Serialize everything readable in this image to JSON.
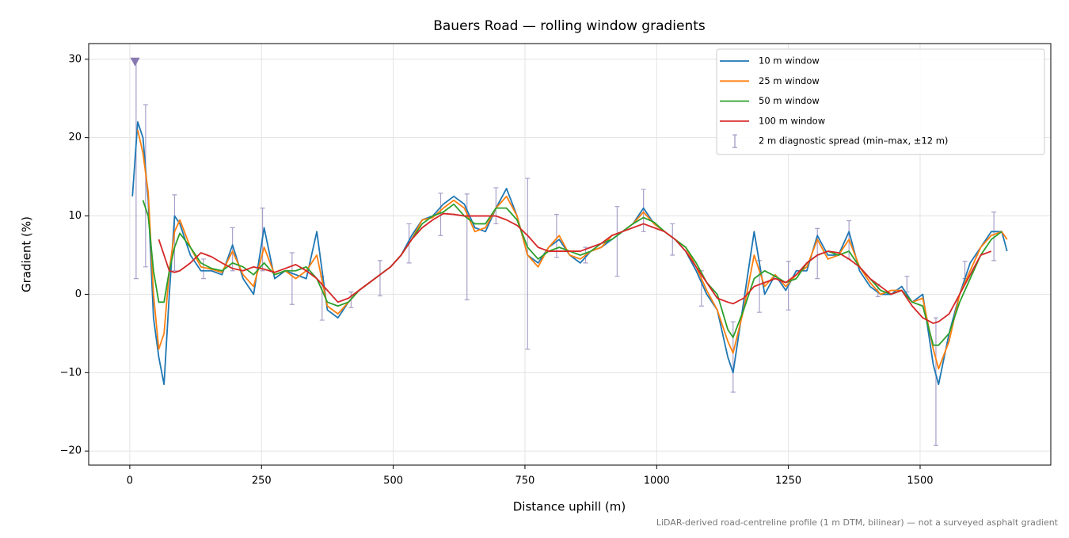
{
  "chart_data": {
    "type": "line",
    "title": "Bauers Road — rolling window gradients",
    "x_label": "Distance uphill (m)",
    "y_label": "Gradient (%)",
    "footnote": "LiDAR-derived road-centreline profile (1 m DTM, bilinear) — not a surveyed asphalt gradient",
    "xlim": [
      -78,
      1748
    ],
    "ylim": [
      -21.8,
      32
    ],
    "xticks": [
      0,
      250,
      500,
      750,
      1000,
      1250,
      1500
    ],
    "yticks": [
      {
        "value": -20,
        "label": "−20"
      },
      {
        "value": -10,
        "label": "−10"
      },
      0,
      10,
      20,
      30
    ],
    "grid": true,
    "legend": "upper right",
    "x": [
      5,
      15,
      25,
      35,
      45,
      55,
      65,
      75,
      85,
      95,
      115,
      135,
      155,
      175,
      195,
      215,
      235,
      255,
      275,
      295,
      315,
      335,
      355,
      375,
      395,
      415,
      435,
      455,
      475,
      495,
      515,
      535,
      555,
      575,
      595,
      615,
      635,
      655,
      675,
      695,
      715,
      735,
      755,
      775,
      795,
      815,
      835,
      855,
      875,
      895,
      915,
      935,
      955,
      975,
      995,
      1015,
      1035,
      1055,
      1075,
      1095,
      1115,
      1135,
      1145,
      1165,
      1185,
      1205,
      1225,
      1245,
      1265,
      1285,
      1305,
      1325,
      1345,
      1365,
      1385,
      1405,
      1425,
      1445,
      1465,
      1485,
      1505,
      1525,
      1535,
      1555,
      1575,
      1595,
      1615,
      1635,
      1655,
      1665
    ],
    "series": [
      {
        "name": "10 m window",
        "color": "#1f77b4",
        "values": [
          12.5,
          22,
          20,
          12,
          -3,
          -8,
          -11.5,
          0,
          10,
          9,
          5,
          3,
          3,
          2.5,
          6.3,
          2,
          0,
          8.5,
          2,
          3,
          2.5,
          2,
          8,
          -2,
          -3,
          -1,
          0.5,
          1.5,
          2.5,
          3.5,
          5,
          7.5,
          9.5,
          10,
          11.5,
          12.5,
          11.5,
          8.5,
          8,
          11,
          13.5,
          10,
          5,
          4,
          6,
          7,
          5,
          4,
          5.5,
          6,
          7,
          8,
          9,
          11,
          9,
          8,
          7,
          5.5,
          3,
          0,
          -2,
          -8,
          -10,
          -1,
          8,
          0,
          2.5,
          0.5,
          3,
          3,
          7.5,
          5,
          5,
          8,
          3,
          1,
          0,
          0,
          1,
          -1,
          0,
          -9,
          -11.5,
          -5,
          0,
          4,
          6,
          8,
          8,
          5.5
        ]
      },
      {
        "name": "25 m window",
        "color": "#ff7f0e",
        "values": [
          null,
          21,
          18,
          13,
          0,
          -7,
          -5,
          3,
          8,
          9.5,
          6,
          3.5,
          3.2,
          2.8,
          5.5,
          2.5,
          1,
          6,
          2.5,
          3,
          2,
          3,
          5,
          -1.5,
          -2.5,
          -1,
          0.5,
          1.5,
          2.5,
          3.5,
          5,
          7,
          9.5,
          9.8,
          11,
          12,
          11,
          8,
          8.5,
          11,
          12.5,
          10,
          5,
          3.5,
          6,
          7.5,
          5,
          4.5,
          5.5,
          6,
          7.5,
          8,
          9,
          10.5,
          9,
          8,
          7,
          6,
          3.5,
          0.5,
          -2,
          -6,
          -7.5,
          -2,
          5,
          1,
          2.5,
          1,
          2.5,
          3.5,
          7,
          4.5,
          5,
          7,
          3.5,
          1.5,
          0,
          0.5,
          0.5,
          -1,
          -0.5,
          -7,
          -9.5,
          -6,
          0,
          3,
          6,
          7.5,
          8,
          7
        ]
      },
      {
        "name": "50 m window",
        "color": "#2ca02c",
        "values": [
          null,
          null,
          12,
          10,
          3,
          -1,
          -1,
          3,
          6,
          7.8,
          6,
          4,
          3.3,
          3,
          4,
          3.5,
          2.5,
          4,
          2.5,
          3,
          3,
          3.5,
          2,
          -1,
          -1.5,
          -1,
          0.5,
          1.5,
          2.5,
          3.5,
          5,
          7,
          9,
          10,
          10.5,
          11.5,
          10,
          9,
          9,
          11,
          11,
          9.5,
          6,
          4.5,
          5.5,
          6,
          5.5,
          5,
          5.5,
          6.5,
          7,
          8,
          9,
          9.8,
          9.2,
          8,
          7,
          6,
          4,
          1.5,
          0,
          -4.5,
          -5.5,
          -2,
          2,
          3,
          2.3,
          1.5,
          2,
          4,
          5,
          5.5,
          5,
          5.5,
          3.5,
          2,
          0.5,
          0,
          0.5,
          -1,
          -1.5,
          -6.5,
          -6.5,
          -5,
          -1,
          2,
          5,
          7,
          8,
          null
        ]
      },
      {
        "name": "100 m window",
        "color": "#d62728",
        "values": [
          null,
          null,
          null,
          null,
          null,
          7,
          5,
          3,
          2.8,
          3,
          4,
          5.3,
          4.8,
          4,
          3.3,
          3,
          3.5,
          3.2,
          2.8,
          3.3,
          3.8,
          3,
          2,
          0.5,
          -1,
          -0.5,
          0.5,
          1.5,
          2.5,
          3.5,
          5,
          7,
          8.5,
          9.5,
          10.3,
          10.2,
          10,
          10,
          10,
          10,
          9.5,
          8.8,
          7.5,
          6,
          5.5,
          5.5,
          5.5,
          5.5,
          6,
          6.5,
          7.5,
          8,
          8.5,
          9,
          8.5,
          8,
          7,
          5.5,
          3.5,
          1.5,
          -0.5,
          -1,
          -1.2,
          -0.5,
          1,
          1.5,
          2,
          1.5,
          2.5,
          4,
          5,
          5.5,
          5.3,
          4.5,
          3.5,
          2,
          1,
          0,
          0.5,
          -1.5,
          -3,
          -3.7,
          -3.5,
          -2.5,
          0,
          2.5,
          5,
          5.5,
          null,
          null
        ]
      }
    ],
    "errorbars": {
      "name": "2 m diagnostic spread (min–max, ±12 m)",
      "color": "#9b8fc0",
      "x": [
        12,
        30,
        85,
        140,
        195,
        252,
        308,
        365,
        420,
        475,
        530,
        590,
        640,
        695,
        755,
        810,
        865,
        925,
        975,
        1030,
        1085,
        1145,
        1195,
        1250,
        1305,
        1365,
        1420,
        1475,
        1530,
        1585,
        1640
      ],
      "low": [
        2,
        3.5,
        3,
        2,
        3,
        3,
        -1.3,
        -3.3,
        -1.7,
        -0.2,
        4,
        7.5,
        -0.7,
        9,
        -7,
        4.7,
        4,
        2.3,
        8,
        5,
        -1.5,
        -12.5,
        -2.3,
        -2,
        2,
        4.5,
        -0.3,
        0.3,
        -19.3,
        2,
        4.3
      ],
      "high": [
        30,
        24.2,
        12.7,
        4.5,
        8.5,
        11,
        5.3,
        2.3,
        0.3,
        4.3,
        9,
        12.9,
        12.8,
        13.6,
        14.8,
        10.2,
        6,
        11.2,
        13.4,
        9,
        3,
        -3.5,
        4.3,
        4.2,
        8.4,
        9.4,
        1.3,
        2.3,
        -3,
        4.2,
        10.5
      ]
    },
    "offscale_marker": {
      "x": 10,
      "y": 29.7,
      "color": "#8878b0"
    }
  }
}
